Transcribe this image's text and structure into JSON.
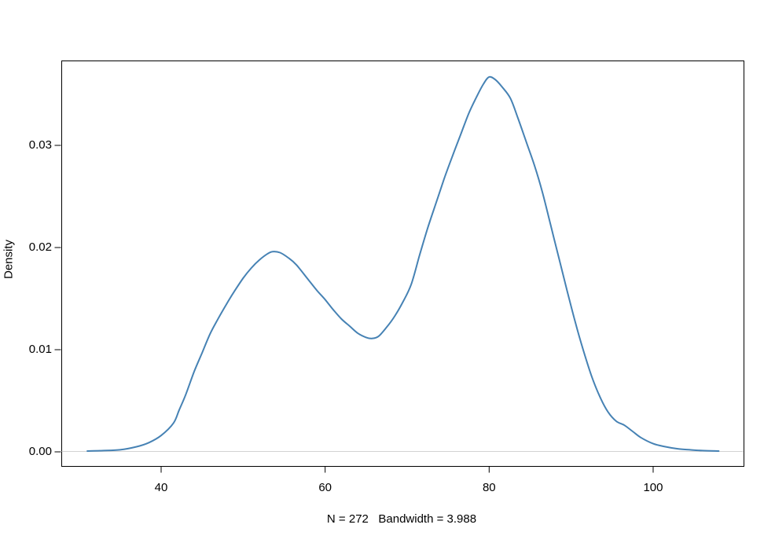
{
  "figure": {
    "y_axis_title": "Density",
    "subtitle": "N = 272   Bandwidth = 3.988",
    "x_tick_labels": [
      "40",
      "60",
      "80",
      "100"
    ],
    "x_tick_values": [
      40,
      60,
      80,
      100
    ],
    "y_tick_labels": [
      "0.00",
      "0.01",
      "0.02",
      "0.03"
    ],
    "y_tick_values": [
      0,
      0.01,
      0.02,
      0.03
    ],
    "line_color": "#4682b4",
    "zero_line_color": "#d3d3d3",
    "box_color": "#000000",
    "text_color": "#000000",
    "background_color": "#ffffff"
  },
  "chart_data": {
    "type": "line",
    "title": "",
    "xlabel": "N = 272   Bandwidth = 3.988",
    "ylabel": "Density",
    "sample_size_label": "N = 272",
    "bandwidth_label": "Bandwidth = 3.988",
    "x_ticks": [
      40,
      60,
      80,
      100
    ],
    "y_ticks": [
      0,
      0.01,
      0.02,
      0.03
    ],
    "xlim": [
      27.8,
      110.9
    ],
    "ylim": [
      0,
      0.0383
    ],
    "grid": false,
    "zero_line": true,
    "description": "Bimodal kernel density estimate: left mode near x=53.6 (density 0.0196), trough near x=65.7 (density 0.0111), main mode near x=80 (density 0.0367); support approx 31 to 108",
    "x": [
      31,
      33,
      35,
      37,
      38.5,
      40,
      41.5,
      42.2,
      43,
      44,
      45,
      46,
      47,
      48,
      49,
      50,
      51,
      52,
      53,
      53.6,
      54.5,
      55.5,
      56.5,
      58,
      59,
      60,
      61,
      62,
      63,
      64,
      65,
      65.7,
      66.5,
      67.5,
      68.5,
      69.5,
      70.5,
      71.5,
      72.5,
      73.5,
      74.5,
      75.5,
      76.5,
      77.5,
      78.5,
      79.3,
      80,
      80.8,
      81.6,
      82.6,
      83.5,
      84.5,
      85.5,
      86.5,
      87.5,
      88.5,
      89.5,
      90.5,
      91.5,
      92.5,
      93.5,
      94.5,
      95.5,
      96.5,
      97.5,
      98.5,
      100,
      101.5,
      103,
      104.5,
      106,
      108
    ],
    "y": [
      8e-05,
      0.00012,
      0.0002,
      0.0005,
      0.0009,
      0.0016,
      0.0028,
      0.0041,
      0.0056,
      0.0078,
      0.0097,
      0.0116,
      0.0131,
      0.0145,
      0.0158,
      0.017,
      0.018,
      0.0188,
      0.0194,
      0.0196,
      0.0195,
      0.019,
      0.0183,
      0.0168,
      0.0158,
      0.0149,
      0.0139,
      0.013,
      0.0123,
      0.0116,
      0.0112,
      0.0111,
      0.0113,
      0.0122,
      0.0133,
      0.0147,
      0.0164,
      0.0192,
      0.0219,
      0.0243,
      0.0267,
      0.0289,
      0.031,
      0.0331,
      0.0348,
      0.036,
      0.0367,
      0.0364,
      0.0357,
      0.0346,
      0.0327,
      0.0304,
      0.0281,
      0.0254,
      0.0222,
      0.019,
      0.0158,
      0.0127,
      0.0099,
      0.0074,
      0.0054,
      0.0039,
      0.003,
      0.0026,
      0.002,
      0.0014,
      0.0008,
      0.0005,
      0.0003,
      0.0002,
      0.00012,
      8e-05
    ]
  }
}
